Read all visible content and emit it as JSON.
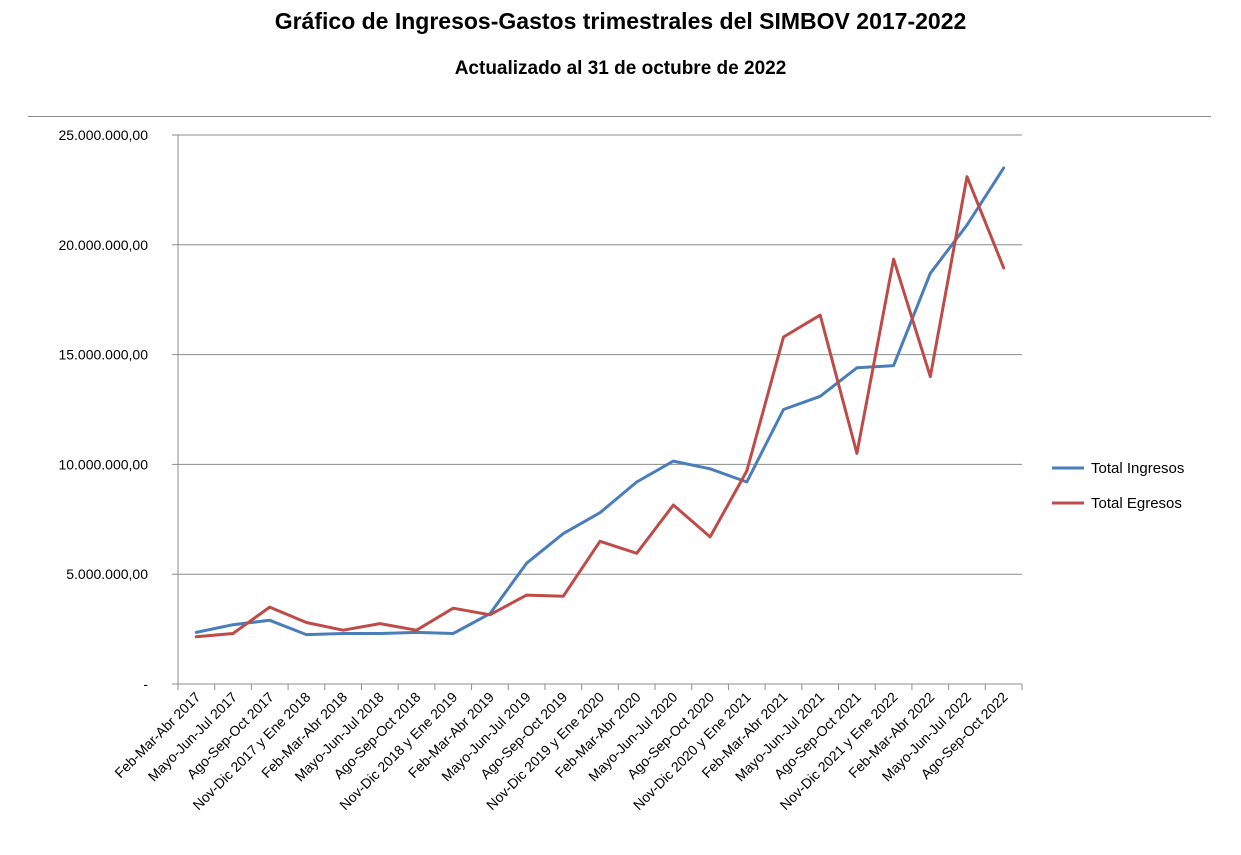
{
  "chart_data": {
    "type": "line",
    "title": "Gráfico de Ingresos-Gastos trimestrales del SIMBOV 2017-2022",
    "subtitle": "Actualizado al 31 de octubre de 2022",
    "xlabel": "",
    "ylabel": "",
    "ylim": [
      0,
      25000000
    ],
    "y_ticks": [
      0,
      5000000,
      10000000,
      15000000,
      20000000,
      25000000
    ],
    "y_tick_labels": [
      "-",
      "5.000.000,00",
      "10.000.000,00",
      "15.000.000,00",
      "20.000.000,00",
      "25.000.000,00"
    ],
    "grid": true,
    "legend_position": "right",
    "categories": [
      "Feb-Mar-Abr 2017",
      "Mayo-Jun-Jul 2017",
      "Ago-Sep-Oct 2017",
      "Nov-Dic 2017 y Ene 2018",
      "Feb-Mar-Abr 2018",
      "Mayo-Jun-Jul 2018",
      "Ago-Sep-Oct 2018",
      "Nov-Dic 2018 y Ene 2019",
      "Feb-Mar-Abr 2019",
      "Mayo-Jun-Jul 2019",
      "Ago-Sep-Oct 2019",
      "Nov-Dic 2019 y Ene 2020",
      "Feb-Mar-Abr 2020",
      "Mayo-Jun-Jul 2020",
      "Ago-Sep-Oct 2020",
      "Nov-Dic 2020 y Ene 2021",
      "Feb-Mar-Abr 2021",
      "Mayo-Jun-Jul 2021",
      "Ago-Sep-Oct 2021",
      "Nov-Dic 2021 y Ene 2022",
      "Feb-Mar-Abr 2022",
      "Mayo-Jun-Jul 2022",
      "Ago-Sep-Oct 2022"
    ],
    "series": [
      {
        "name": "Total Ingresos",
        "color": "#4a7ebb",
        "values": [
          2350000,
          2700000,
          2900000,
          2250000,
          2300000,
          2300000,
          2350000,
          2300000,
          3200000,
          5500000,
          6850000,
          7800000,
          9200000,
          10150000,
          9800000,
          9200000,
          12500000,
          13100000,
          14400000,
          14500000,
          18700000,
          20900000,
          23500000
        ]
      },
      {
        "name": "Total Egresos",
        "color": "#be4b48",
        "values": [
          2150000,
          2300000,
          3500000,
          2800000,
          2450000,
          2750000,
          2450000,
          3450000,
          3150000,
          4050000,
          4000000,
          6500000,
          5950000,
          8150000,
          6700000,
          9700000,
          15800000,
          16800000,
          10500000,
          19350000,
          14000000,
          23100000,
          18950000
        ]
      }
    ]
  }
}
